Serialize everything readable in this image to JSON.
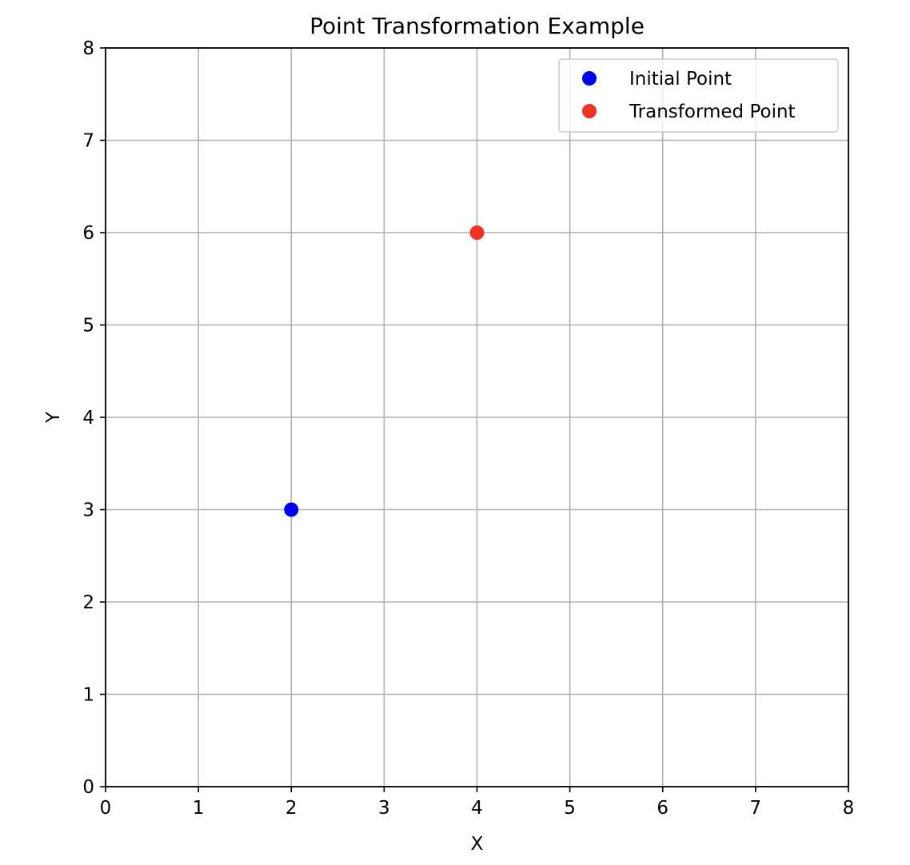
{
  "chart_data": {
    "type": "scatter",
    "title": "Point Transformation Example",
    "xlabel": "X",
    "ylabel": "Y",
    "xlim": [
      0,
      8
    ],
    "ylim": [
      0,
      8
    ],
    "xticks": [
      0,
      1,
      2,
      3,
      4,
      5,
      6,
      7,
      8
    ],
    "yticks": [
      0,
      1,
      2,
      3,
      4,
      5,
      6,
      7,
      8
    ],
    "grid": true,
    "legend_position": "top-right",
    "series": [
      {
        "name": "Initial Point",
        "color": "#0000ee",
        "points": [
          {
            "x": 2,
            "y": 3
          }
        ]
      },
      {
        "name": "Transformed Point",
        "color": "#ee3325",
        "points": [
          {
            "x": 4,
            "y": 6
          }
        ]
      }
    ]
  }
}
